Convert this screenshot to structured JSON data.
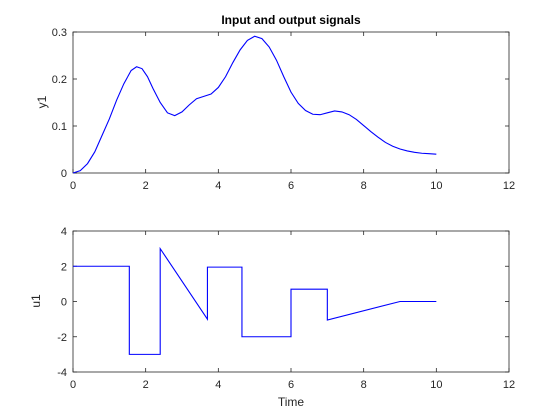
{
  "chart_data": [
    {
      "type": "line",
      "title": "Input and output signals",
      "xlabel": "",
      "ylabel": "y1",
      "xlim": [
        0,
        12
      ],
      "ylim": [
        0,
        0.3
      ],
      "xticks": [
        "0",
        "2",
        "4",
        "6",
        "8",
        "10",
        "12"
      ],
      "yticks": [
        "0",
        "0.1",
        "0.2",
        "0.3"
      ],
      "grid": false,
      "color": "#0000ff",
      "series": [
        {
          "x": [
            0,
            0.2,
            0.4,
            0.6,
            0.8,
            1.0,
            1.2,
            1.4,
            1.6,
            1.75,
            1.9,
            2.05,
            2.2,
            2.4,
            2.6,
            2.8,
            3.0,
            3.2,
            3.4,
            3.6,
            3.8,
            4.0,
            4.2,
            4.4,
            4.6,
            4.8,
            5.0,
            5.2,
            5.4,
            5.6,
            5.8,
            6.0,
            6.2,
            6.4,
            6.6,
            6.8,
            7.0,
            7.2,
            7.4,
            7.6,
            7.8,
            8.0,
            8.2,
            8.4,
            8.6,
            8.8,
            9.0,
            9.2,
            9.4,
            9.6,
            9.8,
            10.0
          ],
          "y": [
            0,
            0.005,
            0.02,
            0.045,
            0.08,
            0.115,
            0.155,
            0.19,
            0.218,
            0.226,
            0.222,
            0.205,
            0.18,
            0.15,
            0.128,
            0.122,
            0.13,
            0.145,
            0.158,
            0.163,
            0.168,
            0.182,
            0.205,
            0.235,
            0.262,
            0.282,
            0.291,
            0.286,
            0.268,
            0.24,
            0.205,
            0.172,
            0.148,
            0.133,
            0.125,
            0.124,
            0.128,
            0.132,
            0.13,
            0.124,
            0.114,
            0.101,
            0.088,
            0.076,
            0.065,
            0.057,
            0.051,
            0.047,
            0.044,
            0.042,
            0.041,
            0.04
          ]
        }
      ]
    },
    {
      "type": "line",
      "title": "",
      "xlabel": "Time",
      "ylabel": "u1",
      "xlim": [
        0,
        12
      ],
      "ylim": [
        -4,
        4
      ],
      "xticks": [
        "0",
        "2",
        "4",
        "6",
        "8",
        "10",
        "12"
      ],
      "yticks": [
        "-4",
        "-2",
        "0",
        "2",
        "4"
      ],
      "grid": false,
      "color": "#0000ff",
      "series": [
        {
          "x": [
            0,
            1.55,
            1.55,
            2.4,
            2.4,
            3.7,
            3.7,
            4.65,
            4.65,
            6.0,
            6.0,
            7.0,
            7.0,
            9.0,
            10.0
          ],
          "y": [
            2,
            2,
            -3,
            -3,
            3,
            -1,
            1.95,
            1.95,
            -2,
            -2,
            0.7,
            0.7,
            -1.05,
            0,
            0
          ]
        }
      ]
    }
  ]
}
